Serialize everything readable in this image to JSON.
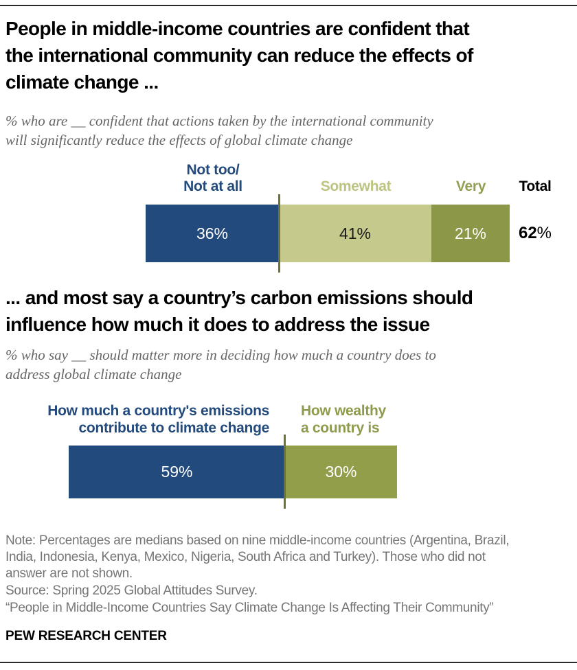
{
  "chart_data": [
    {
      "type": "bar",
      "subtype": "stacked-horizontal",
      "title": "People in middle-income countries are confident that\nthe international community can reduce the effects of\nclimate change ...",
      "subtitle": "% who are __ confident that actions taken by the international community\nwill significantly reduce the effects of global climate change",
      "unit": "%",
      "xlim": [
        0,
        100
      ],
      "grid": false,
      "legend_position": "above-segments",
      "categories": [
        "Not too/Not at all",
        "Somewhat",
        "Very"
      ],
      "segments": [
        {
          "label": "Not too/\nNot at all",
          "value": 36,
          "value_label": "36%",
          "color": "#234A7C",
          "label_color": "#234A7C",
          "text_color": "#FFFFFF"
        },
        {
          "label": "Somewhat",
          "value": 41,
          "value_label": "41%",
          "color": "#C5CA8C",
          "label_color": "#BDC381",
          "text_color": "#1A1A1A"
        },
        {
          "label": "Very",
          "value": 21,
          "value_label": "21%",
          "color": "#8C9747",
          "label_color": "#949E52",
          "text_color": "#FFFFFF"
        }
      ],
      "total": {
        "label": "Total",
        "value": "62",
        "suffix": "%"
      }
    },
    {
      "type": "bar",
      "subtype": "paired-horizontal",
      "title": "... and most say a country’s carbon emissions should\ninfluence how much it does to address the issue",
      "subtitle": "% who say __ should matter more in deciding how much a country does to\naddress global climate change",
      "unit": "%",
      "xlim": [
        0,
        100
      ],
      "grid": false,
      "legend_position": "above-segments",
      "categories": [
        "How much a country's emissions contribute to climate change",
        "How wealthy a country is"
      ],
      "segments": [
        {
          "label": "How much a country's emissions\ncontribute to climate change",
          "value": 59,
          "value_label": "59%",
          "color": "#234A7C",
          "label_color": "#234A7C",
          "text_color": "#FFFFFF"
        },
        {
          "label": "How wealthy\na country is",
          "value": 30,
          "value_label": "30%",
          "color": "#939E4A",
          "label_color": "#8F9A4C",
          "text_color": "#FFFFFF"
        }
      ]
    }
  ],
  "footer": {
    "note": "Note: Percentages are medians based on nine middle-income countries (Argentina, Brazil,\nIndia, Indonesia, Kenya, Mexico, Nigeria, South Africa and Turkey). Those who did not\nanswer are not shown.",
    "source": "Source: Spring 2025 Global Attitudes Survey.",
    "report": "“People in Middle-Income Countries Say Climate Change Is Affecting Their Community”",
    "brand": "PEW RESEARCH CENTER"
  },
  "colors": {
    "dark_blue": "#234A7C",
    "light_olive": "#C5CA8C",
    "olive": "#8C9747",
    "olive_chart2": "#939E4A",
    "divider_line": "#6E7233",
    "subtitle_gray": "#666666",
    "note_gray": "#757575",
    "rule_dark": "#2B2B2B"
  }
}
